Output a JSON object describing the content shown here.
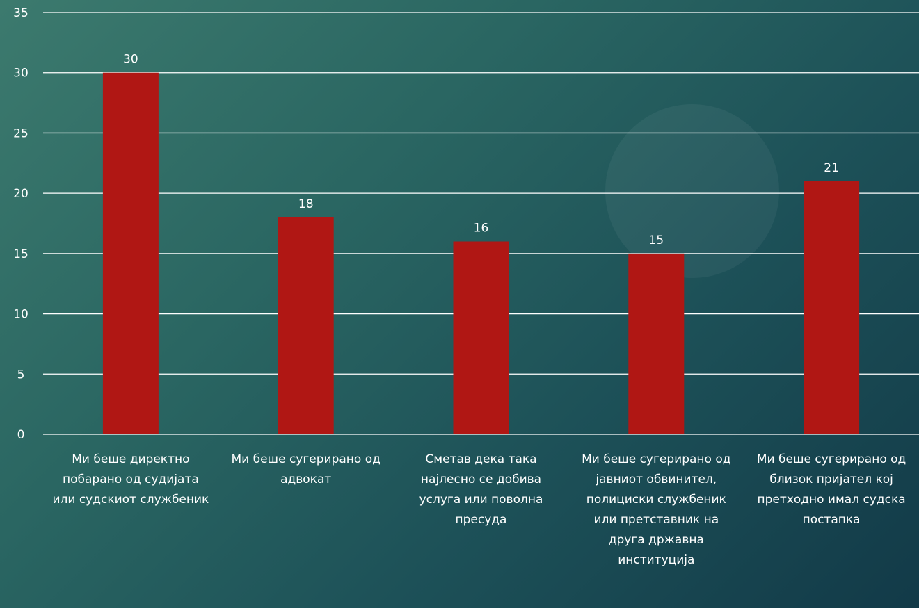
{
  "chart_data": {
    "type": "bar",
    "categories": [
      "Ми беше директно побарано од судијата или судскиот службеник",
      "Ми беше сугерирано од адвокат",
      "Сметав дека така најлесно се добива услуга или поволна пресуда",
      "Ми беше сугерирано од јавниот обвинител, полициски службеник или претставник на друга државна институција",
      "Ми беше сугерирано од близок пријател кој претходно имал судска постапка"
    ],
    "values": [
      30,
      18,
      16,
      15,
      21
    ],
    "ylim": [
      0,
      35
    ],
    "yticks": [
      0,
      5,
      10,
      15,
      20,
      25,
      30,
      35
    ],
    "grid": true,
    "data_labels": true,
    "legend": "none",
    "bar_color": "#b01714",
    "grid_color": "#ffffff",
    "text_color": "#ffffff"
  }
}
